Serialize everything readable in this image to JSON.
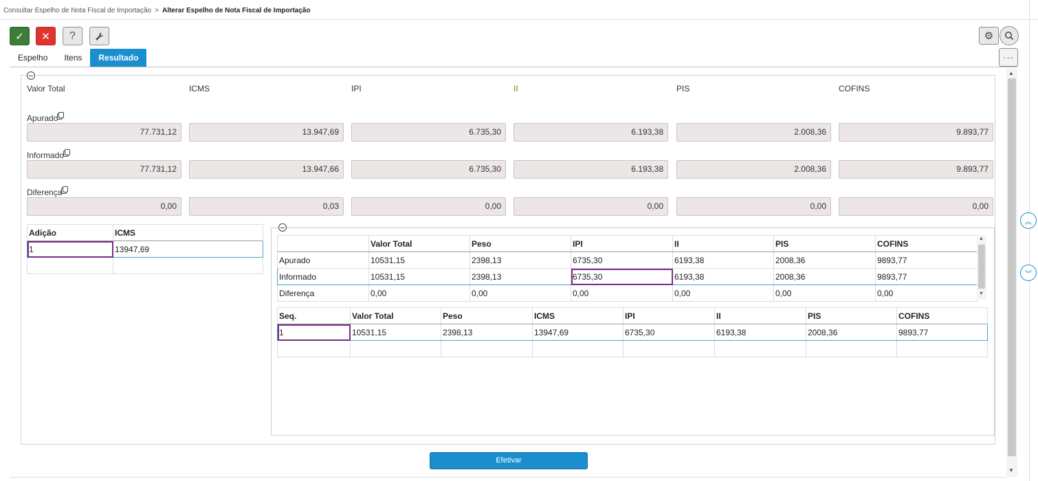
{
  "breadcrumb": {
    "parent": "Consultar Espelho de Nota Fiscal de Importação",
    "separator": ">",
    "current": "Alterar Espelho de Nota Fiscal de Importação"
  },
  "toolbar": {
    "ok_glyph": "✓",
    "cancel_glyph": "✕",
    "help_glyph": "?",
    "tools_glyph": "🔧",
    "settings_glyph": "⚙",
    "search_glyph": "⌕",
    "more_glyph": "···"
  },
  "icons": [
    "check-icon",
    "close-icon",
    "help-icon",
    "wrench-icon",
    "gear-icon",
    "search-icon",
    "more-icon",
    "copy-icon",
    "collapse-icon",
    "scroll-up-icon",
    "scroll-down-icon"
  ],
  "tabs": [
    {
      "label": "Espelho"
    },
    {
      "label": "Itens"
    },
    {
      "label": "Resultado"
    }
  ],
  "summary": {
    "columns": [
      "Valor Total",
      "ICMS",
      "IPI",
      "II",
      "PIS",
      "COFINS"
    ],
    "rows": [
      {
        "label": "Apurado",
        "values": [
          "77.731,12",
          "13.947,69",
          "6.735,30",
          "6.193,38",
          "2.008,36",
          "9.893,77"
        ]
      },
      {
        "label": "Informado",
        "values": [
          "77.731,12",
          "13.947,66",
          "6.735,30",
          "6.193,38",
          "2.008,36",
          "9.893,77"
        ]
      },
      {
        "label": "Diferença",
        "values": [
          "0,00",
          "0,03",
          "0,00",
          "0,00",
          "0,00",
          "0,00"
        ]
      }
    ]
  },
  "adicao_grid": {
    "headers": [
      "Adição",
      "ICMS"
    ],
    "rows": [
      [
        "1",
        "13947,69"
      ]
    ]
  },
  "totals_grid": {
    "headers": [
      "",
      "Valor Total",
      "Peso",
      "IPI",
      "II",
      "PIS",
      "COFINS"
    ],
    "rows": [
      [
        "Apurado",
        "10531,15",
        "2398,13",
        "6735,30",
        "6193,38",
        "2008,36",
        "9893,77"
      ],
      [
        "Informado",
        "10531,15",
        "2398,13",
        "6735,30",
        "6193,38",
        "2008,36",
        "9893,77"
      ],
      [
        "Diferença",
        "0,00",
        "0,00",
        "0,00",
        "0,00",
        "0,00",
        "0,00"
      ]
    ]
  },
  "seq_grid": {
    "headers": [
      "Seq.",
      "Valor Total",
      "Peso",
      "ICMS",
      "IPI",
      "II",
      "PIS",
      "COFINS"
    ],
    "rows": [
      [
        "1",
        "10531,15",
        "2398,13",
        "13947,69",
        "6735,30",
        "6193,38",
        "2008,36",
        "9893,77"
      ]
    ]
  },
  "actions": {
    "efetivar_label": "Efetivar"
  },
  "colors": {
    "accent": "#1a8fd0",
    "ok": "#3e7c3a",
    "cancel": "#e0352f",
    "field_bg": "#ece6e6",
    "focus": "#7a2a8a",
    "ii_header": "#5b8f1e"
  }
}
